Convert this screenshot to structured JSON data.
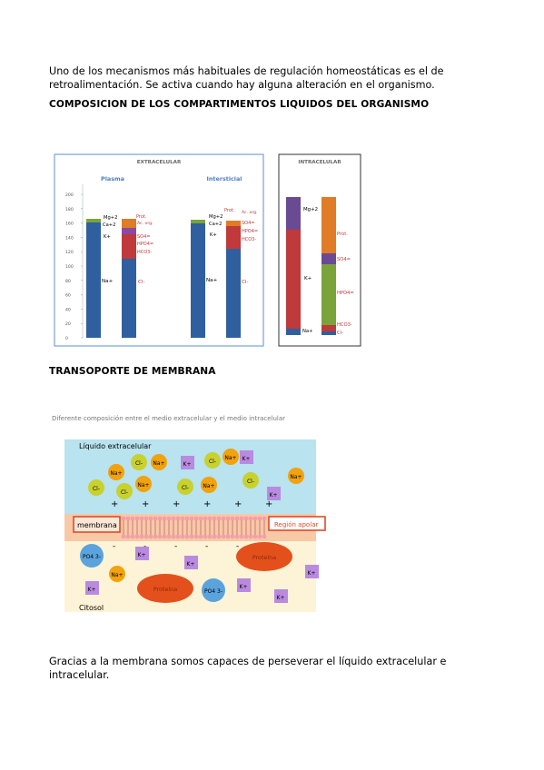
{
  "intro_text": {
    "line1": "Uno de los mecanismos más habituales de regulación homeostáticas es el de",
    "line2": "retroalimentación. Se activa cuando hay alguna alteración en el organismo."
  },
  "heading_composition": "COMPOSICION DE LOS COMPARTIMENTOS LIQUIDOS DEL ORGANISMO",
  "figure_fluids": {
    "extracellular_title": "EXTRACELULAR",
    "intracellular_title": "INTRACELULAR",
    "plasma_label": "Plasma",
    "interstitial_label": "Intersticial",
    "y_ticks": [
      "200",
      "180",
      "160",
      "140",
      "120",
      "100",
      "80",
      "60",
      "40",
      "20",
      "0"
    ],
    "ion_labels": {
      "mg": "Mg+2",
      "ca": "Ca+2",
      "k": "K+",
      "na": "Na+",
      "cl": "Cl-",
      "prot": "Prot.",
      "ac_org": "Ac. org.",
      "so4": "SO4=",
      "hpo4": "HPO4=",
      "hco3": "HCO3-"
    },
    "colors": {
      "na": "#2f5f9e",
      "cl": "#c0393b",
      "prot": "#e07b26",
      "mg": "#6b4a94",
      "k": "#7aa33a",
      "hpo4_intra": "#e07b26"
    }
  },
  "heading_transport": "TRANSOPORTE DE MEMBRANA",
  "figure_membrane": {
    "caption": "Diferente composición entre el medio extracelular y el medio intracelular",
    "extracellular_label": "Líquido extracelular",
    "cytosol_label": "Citosol",
    "membrane_label": "membrana",
    "apolar_label": "Región apolar",
    "protein_label": "Proteína",
    "ions": {
      "na": "Na+",
      "cl": "Cl-",
      "k": "K+",
      "po4": "PO4 3-"
    },
    "plus_sign": "+",
    "minus_sign": "-"
  },
  "closing_text": {
    "line1": "Gracias a la membrana somos capaces de perseverar el líquido extracelular e",
    "line2": "intracelular."
  }
}
